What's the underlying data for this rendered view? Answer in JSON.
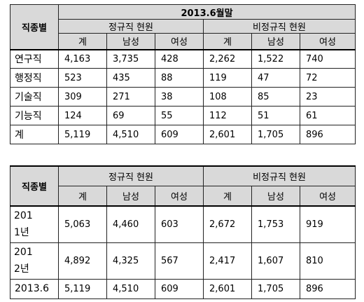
{
  "table1": {
    "corner": "직종별",
    "period": "2013.6월말",
    "group_regular": "정규직 현원",
    "group_irregular": "비정규직 현원",
    "cols": [
      "계",
      "남성",
      "여성",
      "계",
      "남성",
      "여성"
    ],
    "rows": [
      {
        "label": "연구직",
        "cells": [
          "4,163",
          "3,735",
          "428",
          "2,262",
          "1,522",
          "740"
        ]
      },
      {
        "label": "행정직",
        "cells": [
          "523",
          "435",
          "88",
          "119",
          "47",
          "72"
        ]
      },
      {
        "label": "기술직",
        "cells": [
          "309",
          "271",
          "38",
          "108",
          "85",
          "23"
        ]
      },
      {
        "label": "기능직",
        "cells": [
          "124",
          "69",
          "55",
          "112",
          "51",
          "61"
        ]
      },
      {
        "label": "계",
        "cells": [
          "5,119",
          "4,510",
          "609",
          "2,601",
          "1,705",
          "896"
        ]
      }
    ]
  },
  "table2": {
    "corner": "직종별",
    "group_regular": "정규직 현원",
    "group_irregular": "비정규직 현원",
    "cols": [
      "계",
      "남성",
      "여성",
      "계",
      "남성",
      "여성"
    ],
    "rows": [
      {
        "label": "2011년",
        "cells": [
          "5,063",
          "4,460",
          "603",
          "2,672",
          "1,753",
          "919"
        ]
      },
      {
        "label": "2012년",
        "cells": [
          "4,892",
          "4,325",
          "567",
          "2,417",
          "1,607",
          "810"
        ]
      },
      {
        "label": "2013.6",
        "cells": [
          "5,119",
          "4,510",
          "609",
          "2,601",
          "1,705",
          "896"
        ]
      }
    ]
  }
}
